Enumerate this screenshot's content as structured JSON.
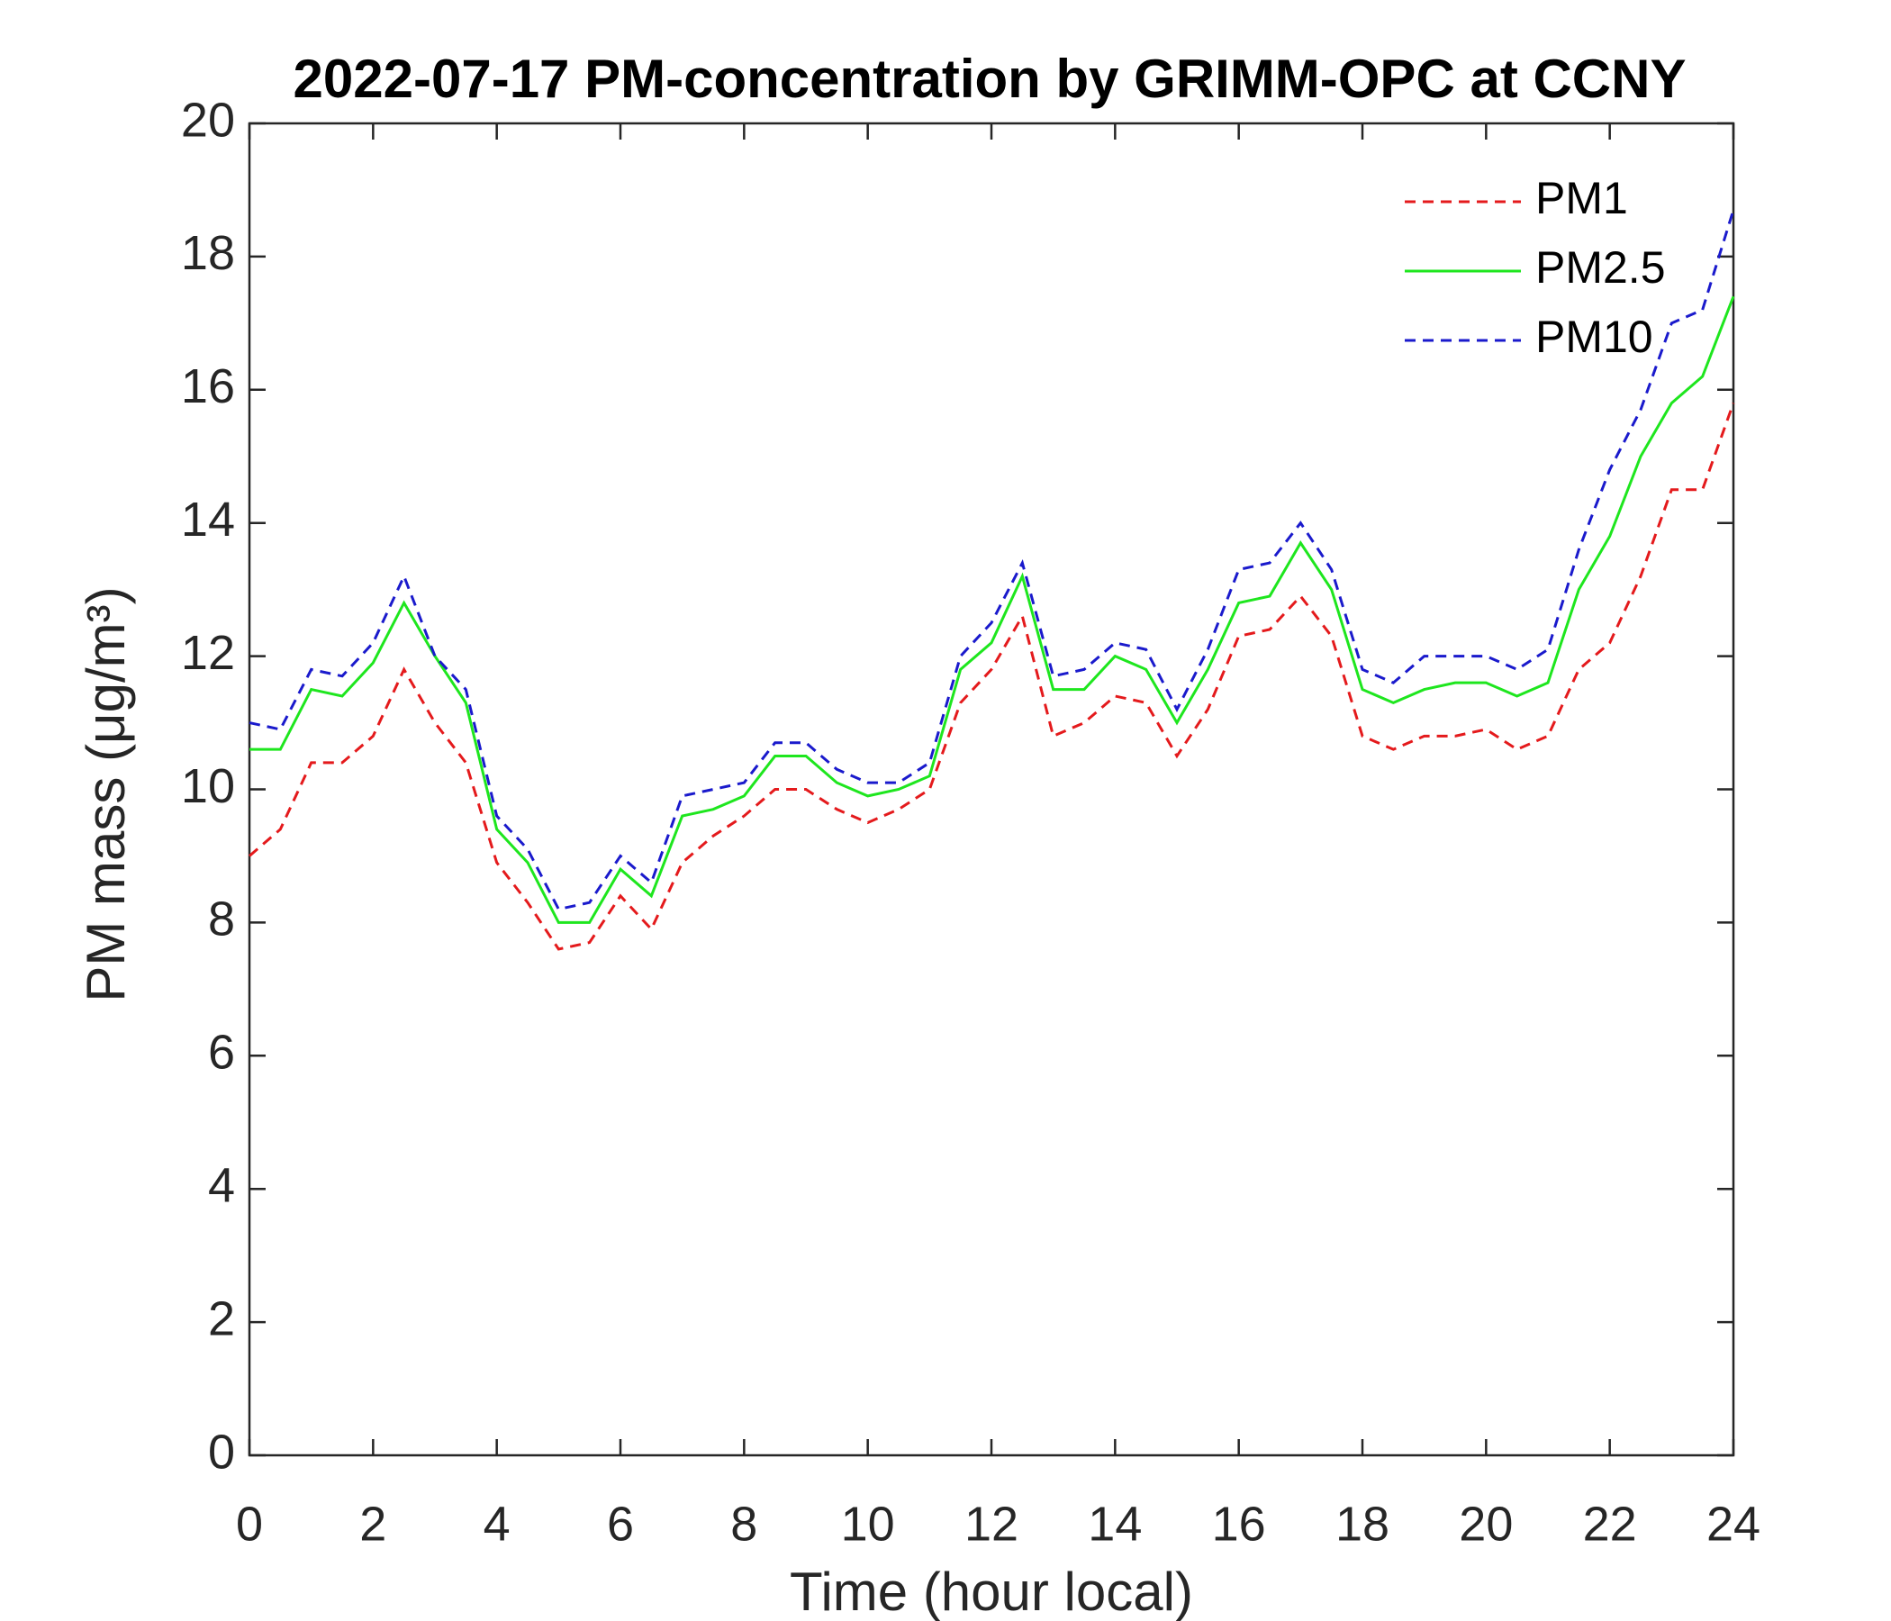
{
  "chart_data": {
    "type": "line",
    "title": "2022-07-17 PM-concentration by GRIMM-OPC at CCNY",
    "x_label": "Time (hour local)",
    "y_label": "PM mass (μg/m³)",
    "x": [
      0,
      0.5,
      1,
      1.5,
      2,
      2.5,
      3,
      3.5,
      4,
      4.5,
      5,
      5.5,
      6,
      6.5,
      7,
      7.5,
      8,
      8.5,
      9,
      9.5,
      10,
      10.5,
      11,
      11.5,
      12,
      12.5,
      13,
      13.5,
      14,
      14.5,
      15,
      15.5,
      16,
      16.5,
      17,
      17.5,
      18,
      18.5,
      19,
      19.5,
      20,
      20.5,
      21,
      21.5,
      22,
      22.5,
      23,
      23.5,
      24
    ],
    "series": [
      {
        "name": "PM1",
        "color": "#e41a1c",
        "dash": true,
        "values": [
          9.0,
          9.4,
          10.4,
          10.4,
          10.8,
          11.8,
          11.0,
          10.4,
          8.9,
          8.3,
          7.6,
          7.7,
          8.4,
          7.9,
          8.9,
          9.3,
          9.6,
          10.0,
          10.0,
          9.7,
          9.5,
          9.7,
          10.0,
          11.3,
          11.8,
          12.6,
          10.8,
          11.0,
          11.4,
          11.3,
          10.5,
          11.2,
          12.3,
          12.4,
          12.9,
          12.3,
          10.8,
          10.6,
          10.8,
          10.8,
          10.9,
          10.6,
          10.8,
          11.8,
          12.2,
          13.2,
          14.5,
          14.5,
          15.8
        ]
      },
      {
        "name": "PM2.5",
        "color": "#1ee61e",
        "dash": false,
        "values": [
          10.6,
          10.6,
          11.5,
          11.4,
          11.9,
          12.8,
          12.0,
          11.3,
          9.4,
          8.9,
          8.0,
          8.0,
          8.8,
          8.4,
          9.6,
          9.7,
          9.9,
          10.5,
          10.5,
          10.1,
          9.9,
          10.0,
          10.2,
          11.8,
          12.2,
          13.2,
          11.5,
          11.5,
          12.0,
          11.8,
          11.0,
          11.8,
          12.8,
          12.9,
          13.7,
          13.0,
          11.5,
          11.3,
          11.5,
          11.6,
          11.6,
          11.4,
          11.6,
          13.0,
          13.8,
          15.0,
          15.8,
          16.2,
          17.4
        ]
      },
      {
        "name": "PM10",
        "color": "#1a1acc",
        "dash": true,
        "values": [
          11.0,
          10.9,
          11.8,
          11.7,
          12.2,
          13.2,
          12.0,
          11.5,
          9.6,
          9.1,
          8.2,
          8.3,
          9.0,
          8.6,
          9.9,
          10.0,
          10.1,
          10.7,
          10.7,
          10.3,
          10.1,
          10.1,
          10.4,
          12.0,
          12.5,
          13.4,
          11.7,
          11.8,
          12.2,
          12.1,
          11.2,
          12.1,
          13.3,
          13.4,
          14.0,
          13.3,
          11.8,
          11.6,
          12.0,
          12.0,
          12.0,
          11.8,
          12.1,
          13.6,
          14.8,
          15.7,
          17.0,
          17.2,
          18.7
        ]
      }
    ],
    "xlim": [
      0,
      24
    ],
    "xticks": [
      0,
      2,
      4,
      6,
      8,
      10,
      12,
      14,
      16,
      18,
      20,
      22,
      24
    ],
    "ylim": [
      0,
      20
    ],
    "yticks": [
      0,
      2,
      4,
      6,
      8,
      10,
      12,
      14,
      16,
      18,
      20
    ],
    "legend": "upper right"
  }
}
